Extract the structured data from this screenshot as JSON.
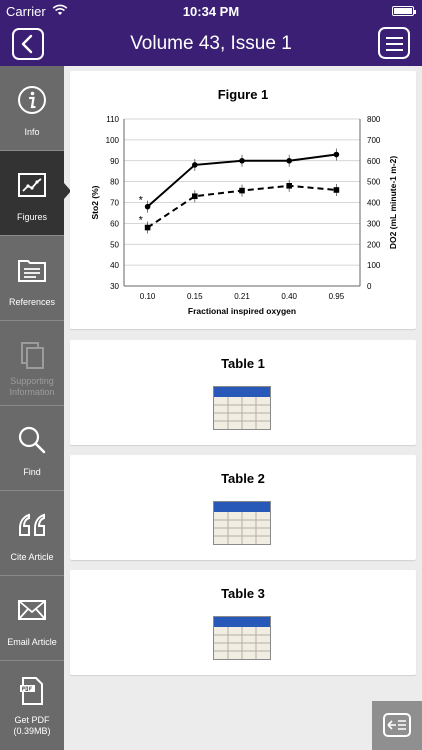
{
  "status_bar": {
    "carrier": "Carrier",
    "time": "10:34 PM"
  },
  "nav": {
    "title": "Volume 43, Issue 1"
  },
  "sidebar": {
    "items": [
      {
        "label": "Info",
        "icon": "info-icon"
      },
      {
        "label": "Figures",
        "icon": "chart-icon",
        "active": true
      },
      {
        "label": "References",
        "icon": "references-icon"
      },
      {
        "label": "Supporting Information",
        "icon": "copy-icon",
        "disabled": true
      },
      {
        "label": "Find",
        "icon": "search-icon"
      },
      {
        "label": "Cite Article",
        "icon": "quote-icon"
      },
      {
        "label": "Email Article",
        "icon": "envelope-icon"
      },
      {
        "label": "Get PDF (0.39MB)",
        "icon": "pdf-icon"
      }
    ]
  },
  "figure": {
    "title": "Figure 1"
  },
  "tables": [
    {
      "title": "Table 1"
    },
    {
      "title": "Table 2"
    },
    {
      "title": "Table 3"
    }
  ],
  "chart_data": {
    "type": "line",
    "categories": [
      "0.10",
      "0.15",
      "0.21",
      "0.40",
      "0.95"
    ],
    "xlabel": "Fractional inspired oxygen",
    "ylabel_left": "Sto2 (%)",
    "ylabel_right": "DO2 (mL minute-1 m-2)",
    "ylim_left": [
      30,
      110
    ],
    "yticks_left": [
      "30",
      "40",
      "50",
      "60",
      "70",
      "80",
      "90",
      "100",
      "110"
    ],
    "ylim_right": [
      0,
      800
    ],
    "yticks_right": [
      "0",
      "100",
      "200",
      "300",
      "400",
      "500",
      "600",
      "700",
      "800"
    ],
    "grid": true,
    "series": [
      {
        "axis": "left",
        "style": "solid",
        "marker": "circle",
        "values": [
          68,
          88,
          90,
          90,
          93
        ]
      },
      {
        "axis": "right",
        "style": "dashed",
        "marker": "square",
        "values": [
          280,
          430,
          457,
          480,
          460
        ]
      }
    ],
    "annotations": [
      "*",
      "*"
    ]
  }
}
